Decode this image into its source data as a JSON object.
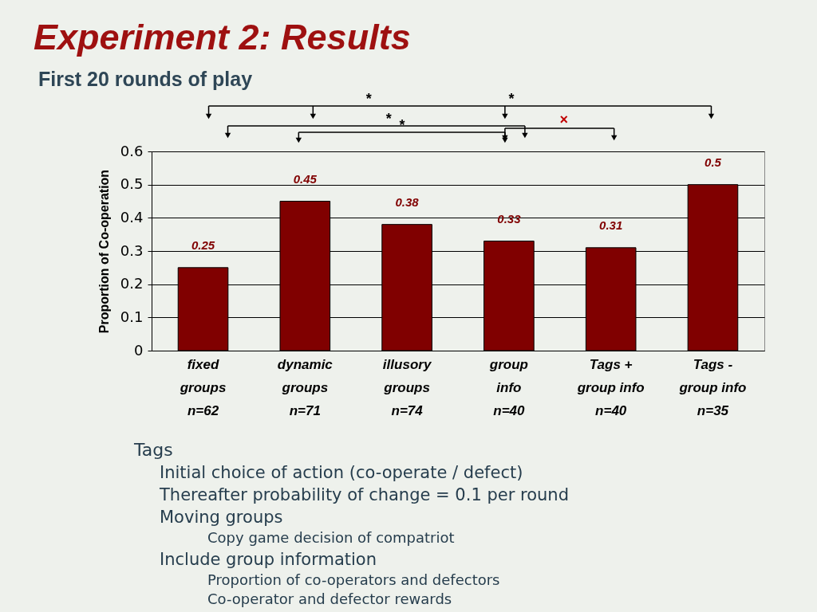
{
  "chart_data": {
    "type": "bar",
    "title": "Experiment 2: Results",
    "subtitle": "First 20 rounds of play",
    "ylabel": "Proportion of Co-operation",
    "categories": [
      "fixed\ngroups\nn=62",
      "dynamic\ngroups\nn=71",
      "illusory\ngroups\nn=74",
      "group\ninfo\nn=40",
      "Tags +\ngroup info\nn=40",
      "Tags -\ngroup info\nn=35"
    ],
    "values": [
      0.25,
      0.45,
      0.38,
      0.33,
      0.31,
      0.5
    ],
    "color": "#800000",
    "data_labels": true,
    "ylim": [
      0,
      0.6
    ],
    "yticks": [
      0,
      0.1,
      0.2,
      0.3,
      0.4,
      0.5,
      0.6
    ],
    "grid": "y",
    "annotations": [
      "*",
      "*",
      "*",
      "*",
      "×",
      "Tags",
      "Initial choice of action (co-operate / defect)",
      "Thereafter probability of change = 0.1 per round",
      "Moving groups",
      "Copy game decision of compatriot",
      "Include group information",
      "Proportion of co-operators and defectors",
      "Co-operator and defector rewards"
    ]
  }
}
